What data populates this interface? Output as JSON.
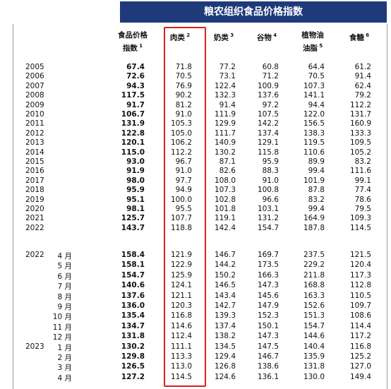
{
  "title": "粮农组织食品价格指数",
  "columns": [
    {
      "lines": [
        "食品价格",
        "指数"
      ],
      "note": "1"
    },
    {
      "lines": [
        "肉类"
      ],
      "note": "2"
    },
    {
      "lines": [
        "奶类"
      ],
      "note": "3"
    },
    {
      "lines": [
        "谷物"
      ],
      "note": "4"
    },
    {
      "lines": [
        "植物油",
        "油脂"
      ],
      "note": "5"
    },
    {
      "lines": [
        "食糖"
      ],
      "note": "6"
    }
  ],
  "annual": [
    {
      "year": "2005",
      "values": [
        "67.4",
        "71.8",
        "77.2",
        "60.8",
        "64.4",
        "61.2"
      ]
    },
    {
      "year": "2006",
      "values": [
        "72.6",
        "70.5",
        "73.1",
        "71.2",
        "70.5",
        "91.4"
      ]
    },
    {
      "year": "2007",
      "values": [
        "94.3",
        "76.9",
        "122.4",
        "100.9",
        "107.3",
        "62.4"
      ]
    },
    {
      "year": "2008",
      "values": [
        "117.5",
        "90.2",
        "132.3",
        "137.6",
        "141.1",
        "79.2"
      ]
    },
    {
      "year": "2009",
      "values": [
        "91.7",
        "81.2",
        "91.4",
        "97.2",
        "94.4",
        "112.2"
      ]
    },
    {
      "year": "2010",
      "values": [
        "106.7",
        "91.0",
        "111.9",
        "107.5",
        "122.0",
        "131.7"
      ]
    },
    {
      "year": "2011",
      "values": [
        "131.9",
        "105.3",
        "129.9",
        "142.2",
        "156.5",
        "160.9"
      ]
    },
    {
      "year": "2012",
      "values": [
        "122.8",
        "105.0",
        "111.7",
        "137.4",
        "138.3",
        "133.3"
      ]
    },
    {
      "year": "2013",
      "values": [
        "120.1",
        "106.2",
        "140.9",
        "129.1",
        "119.5",
        "109.5"
      ]
    },
    {
      "year": "2014",
      "values": [
        "115.0",
        "112.2",
        "130.2",
        "115.8",
        "110.6",
        "105.2"
      ]
    },
    {
      "year": "2015",
      "values": [
        "93.0",
        "96.7",
        "87.1",
        "95.9",
        "89.9",
        "83.2"
      ]
    },
    {
      "year": "2016",
      "values": [
        "91.9",
        "91.0",
        "82.6",
        "88.3",
        "99.4",
        "111.6"
      ]
    },
    {
      "year": "2017",
      "values": [
        "98.0",
        "97.7",
        "108.0",
        "91.0",
        "101.9",
        "99.1"
      ]
    },
    {
      "year": "2018",
      "values": [
        "95.9",
        "94.9",
        "107.3",
        "100.8",
        "87.8",
        "77.4"
      ]
    },
    {
      "year": "2019",
      "values": [
        "95.1",
        "100.0",
        "102.8",
        "96.6",
        "83.2",
        "78.6"
      ]
    },
    {
      "year": "2020",
      "values": [
        "98.1",
        "95.5",
        "101.8",
        "103.1",
        "99.4",
        "79.5"
      ]
    },
    {
      "year": "2021",
      "values": [
        "125.7",
        "107.7",
        "119.1",
        "131.2",
        "164.9",
        "109.3"
      ]
    },
    {
      "year": "2022",
      "values": [
        "143.7",
        "118.8",
        "142.4",
        "154.7",
        "187.8",
        "114.5"
      ]
    }
  ],
  "monthly": [
    {
      "year": "2022",
      "month": "4 月",
      "values": [
        "158.4",
        "121.9",
        "146.7",
        "169.7",
        "237.5",
        "121.5"
      ]
    },
    {
      "month": "5 月",
      "values": [
        "158.1",
        "122.9",
        "144.2",
        "173.5",
        "229.2",
        "120.4"
      ]
    },
    {
      "month": "6 月",
      "values": [
        "154.7",
        "125.9",
        "150.2",
        "166.3",
        "211.8",
        "117.3"
      ]
    },
    {
      "month": "7 月",
      "values": [
        "140.6",
        "124.1",
        "146.5",
        "147.3",
        "168.8",
        "112.8"
      ]
    },
    {
      "month": "8 月",
      "values": [
        "137.6",
        "121.1",
        "143.4",
        "145.6",
        "163.3",
        "110.5"
      ]
    },
    {
      "month": "9 月",
      "values": [
        "136.0",
        "120.3",
        "142.7",
        "147.9",
        "152.6",
        "109.7"
      ]
    },
    {
      "month": "10 月",
      "values": [
        "135.4",
        "116.8",
        "139.3",
        "152.3",
        "151.3",
        "108.6"
      ]
    },
    {
      "month": "11 月",
      "values": [
        "134.7",
        "114.6",
        "137.4",
        "150.1",
        "154.7",
        "114.4"
      ]
    },
    {
      "month": "12 月",
      "values": [
        "131.8",
        "112.4",
        "138.2",
        "147.3",
        "144.6",
        "117.2"
      ]
    },
    {
      "year": "2023",
      "month": "1 月",
      "values": [
        "130.2",
        "111.1",
        "134.5",
        "147.5",
        "140.4",
        "116.8"
      ]
    },
    {
      "month": "2 月",
      "values": [
        "129.8",
        "113.3",
        "129.4",
        "146.7",
        "135.9",
        "125.2"
      ]
    },
    {
      "month": "3 月",
      "values": [
        "126.5",
        "113.0",
        "126.8",
        "138.6",
        "131.8",
        "127.0"
      ]
    },
    {
      "month": "4 月",
      "values": [
        "127.2",
        "114.5",
        "124.6",
        "136.1",
        "130.0",
        "149.4"
      ]
    }
  ]
}
